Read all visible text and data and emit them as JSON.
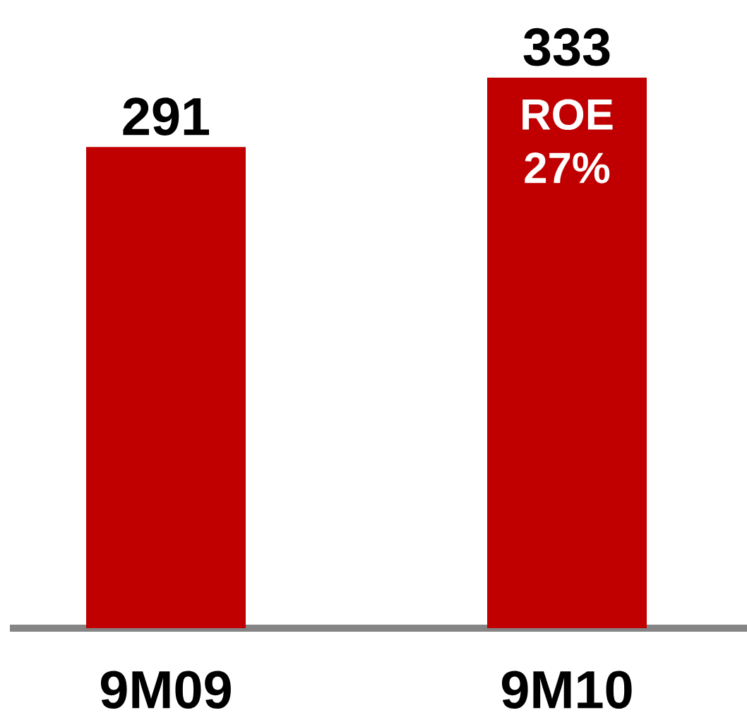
{
  "chart_data": {
    "type": "bar",
    "categories": [
      "9M09",
      "9M10"
    ],
    "values": [
      291,
      333
    ],
    "color": "#c00000",
    "data_labels": true,
    "annotations": [
      "ROE 27%"
    ]
  }
}
